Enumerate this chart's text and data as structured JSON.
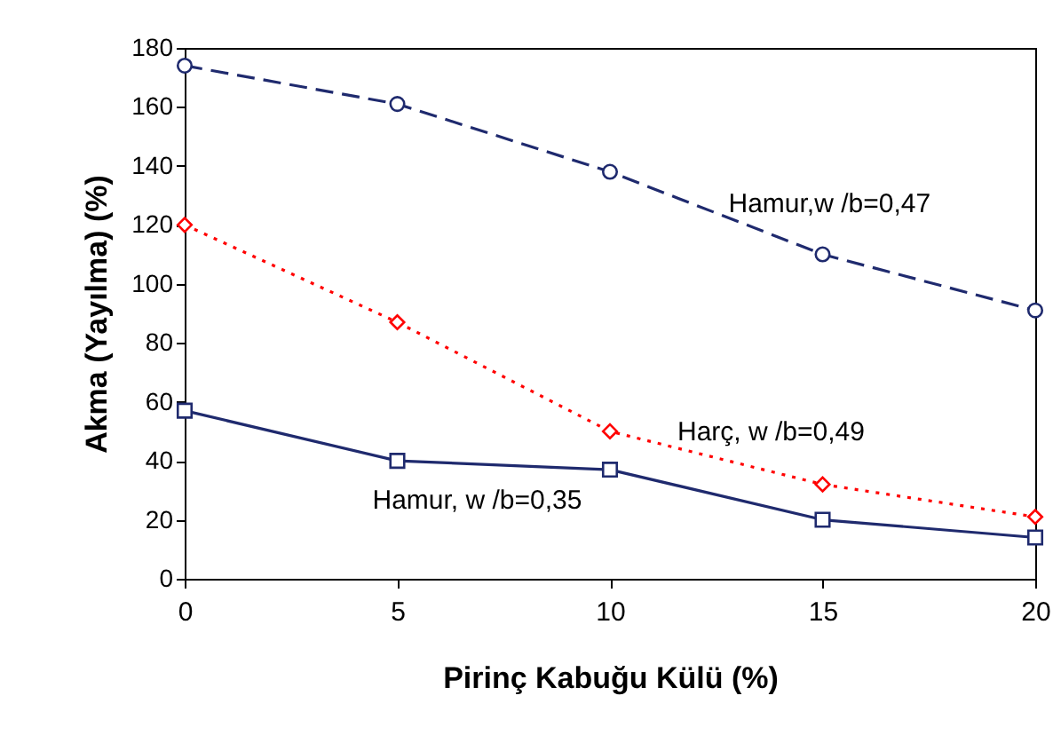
{
  "chart_data": {
    "type": "line",
    "xlabel": "Pirinç Kabuğu Külü (%)",
    "ylabel": "Akma (Yayılma) (%)",
    "x": [
      0,
      5,
      10,
      15,
      20
    ],
    "series": [
      {
        "name": "Hamur,w /b=0,47",
        "color": "#1f2a6e",
        "marker": "circle",
        "line_style": "dashed",
        "values": [
          174,
          161,
          138,
          110,
          91
        ]
      },
      {
        "name": "Harç, w /b=0,49",
        "color": "#ff0000",
        "marker": "diamond",
        "line_style": "dotted",
        "values": [
          120,
          87,
          50,
          32,
          21
        ]
      },
      {
        "name": "Hamur, w /b=0,35",
        "color": "#1f2a6e",
        "marker": "square",
        "line_style": "solid",
        "values": [
          57,
          40,
          37,
          20,
          14
        ]
      }
    ],
    "legend": false,
    "xlim": [
      0,
      20
    ],
    "xticks": [
      0,
      5,
      10,
      15,
      20
    ],
    "ylim": [
      0,
      180
    ],
    "yticks": [
      0,
      20,
      40,
      60,
      80,
      100,
      120,
      140,
      160,
      180
    ],
    "grid": false
  }
}
